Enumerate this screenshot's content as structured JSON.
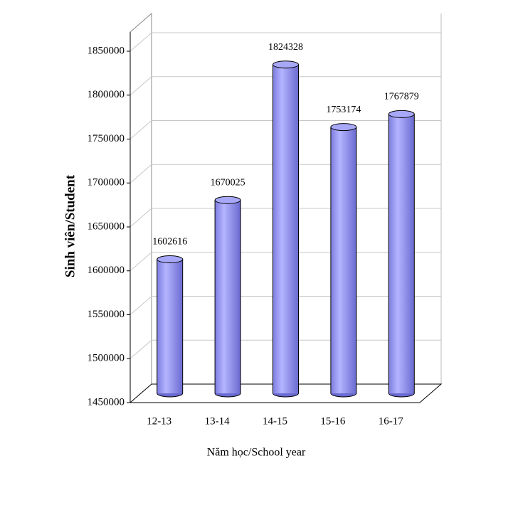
{
  "chart_data": {
    "type": "bar",
    "x_label": "Năm học/School year",
    "y_label": "Sinh viên/Student",
    "categories": [
      "12-13",
      "13-14",
      "14-15",
      "15-16",
      "16-17"
    ],
    "values": [
      1602616,
      1670025,
      1824328,
      1753174,
      1767879
    ],
    "color": "#9999ff",
    "ylim": [
      1450000,
      1850000
    ],
    "yticks": [
      1450000,
      1500000,
      1550000,
      1600000,
      1650000,
      1700000,
      1750000,
      1800000,
      1850000
    ],
    "grid": true
  }
}
